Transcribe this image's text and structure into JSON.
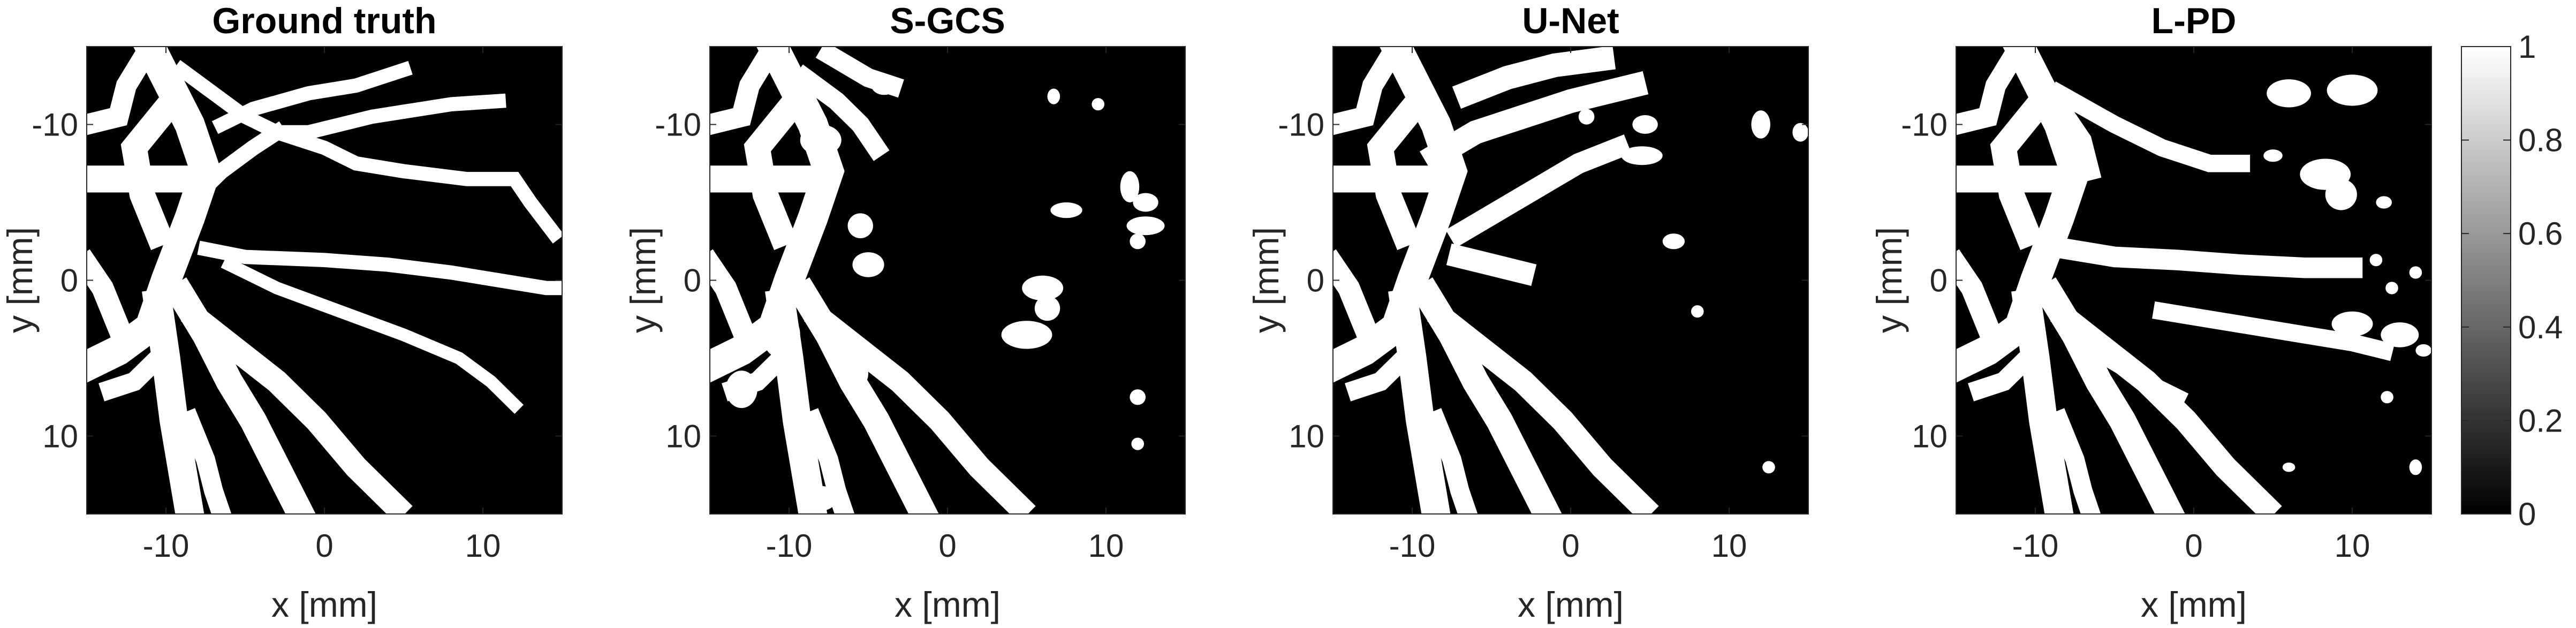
{
  "chart_data": {
    "type": "heatmap",
    "colormap": "gray",
    "colorbar": {
      "min": 0,
      "max": 1,
      "ticks": [
        0,
        0.2,
        0.4,
        0.6,
        0.8,
        1
      ]
    },
    "shared_axes": {
      "xlabel": "x [mm]",
      "ylabel": "y [mm]",
      "xlim": [
        -15,
        15
      ],
      "ylim": [
        -15,
        15
      ],
      "xticks": [
        -10,
        0,
        10
      ],
      "yticks": [
        -10,
        0,
        10
      ],
      "y_direction": "down"
    },
    "panels": [
      {
        "title": "Ground truth"
      },
      {
        "title": "S-GCS"
      },
      {
        "title": "U-Net"
      },
      {
        "title": "L-PD"
      }
    ],
    "vessels": {
      "common": [
        {
          "w": 1.9,
          "pts": [
            [
              -15,
              5.5
            ],
            [
              -13,
              4.5
            ],
            [
              -11,
              3
            ],
            [
              -10,
              0
            ],
            [
              -8.5,
              -4
            ],
            [
              -7.5,
              -7
            ],
            [
              -8.5,
              -10
            ],
            [
              -10,
              -13
            ],
            [
              -11,
              -15
            ]
          ]
        },
        {
          "w": 1.6,
          "pts": [
            [
              -10,
              -11
            ],
            [
              -12,
              -8.5
            ],
            [
              -11.5,
              -5.5
            ],
            [
              -10.5,
              -3
            ]
          ]
        },
        {
          "w": 1.3,
          "pts": [
            [
              -11,
              -15
            ],
            [
              -12.5,
              -12.5
            ],
            [
              -13,
              -10.5
            ],
            [
              -15,
              -10
            ]
          ]
        },
        {
          "w": 1.7,
          "pts": [
            [
              -15,
              -6.5
            ],
            [
              -12.5,
              -6.5
            ],
            [
              -10.5,
              -6.5
            ],
            [
              -8.5,
              -6.5
            ]
          ]
        },
        {
          "w": 1.7,
          "pts": [
            [
              -9,
              1
            ],
            [
              -7.5,
              3.5
            ],
            [
              -6,
              6.5
            ],
            [
              -4.5,
              9
            ],
            [
              -3,
              12
            ],
            [
              -1.5,
              15
            ]
          ]
        },
        {
          "w": 1.8,
          "pts": [
            [
              -10.5,
              1.5
            ],
            [
              -10,
              5
            ],
            [
              -9.5,
              9
            ],
            [
              -9,
              12
            ],
            [
              -8.5,
              15
            ]
          ]
        },
        {
          "w": 1.2,
          "pts": [
            [
              -10.5,
              5
            ],
            [
              -12,
              6.5
            ],
            [
              -13.5,
              7
            ]
          ]
        },
        {
          "w": 1.5,
          "pts": [
            [
              -8,
              2.5
            ],
            [
              -5.5,
              4.5
            ],
            [
              -3,
              6.5
            ],
            [
              -0.5,
              9
            ],
            [
              2,
              12
            ],
            [
              4.5,
              14.5
            ]
          ]
        },
        {
          "w": 1.2,
          "pts": [
            [
              -8.5,
              9
            ],
            [
              -7.5,
              11.5
            ],
            [
              -7,
              13.5
            ],
            [
              -6.5,
              15
            ]
          ]
        },
        {
          "w": 1.4,
          "pts": [
            [
              -13,
              3
            ],
            [
              -14,
              0.5
            ],
            [
              -15,
              -1
            ]
          ]
        }
      ],
      "ground_truth": [
        {
          "w": 0.9,
          "pts": [
            [
              -6.5,
              -10
            ],
            [
              -4.5,
              -11
            ],
            [
              -1,
              -12
            ],
            [
              2,
              -12.5
            ],
            [
              5,
              -13.5
            ]
          ]
        },
        {
          "w": 0.9,
          "pts": [
            [
              -9,
              -13.5
            ],
            [
              -7,
              -12
            ],
            [
              -5,
              -10.5
            ],
            [
              -3,
              -9.5
            ],
            [
              -1,
              -9.5
            ],
            [
              3,
              -10.5
            ],
            [
              8,
              -11.3
            ],
            [
              11,
              -11.5
            ]
          ]
        },
        {
          "w": 1.0,
          "pts": [
            [
              -8,
              -5.5
            ],
            [
              -6.5,
              -7
            ],
            [
              -4.5,
              -8.5
            ],
            [
              -3,
              -9.5
            ]
          ]
        },
        {
          "w": 0.9,
          "pts": [
            [
              -3,
              -9.5
            ],
            [
              0,
              -8.5
            ],
            [
              2,
              -7.5
            ],
            [
              5,
              -7
            ],
            [
              9,
              -6.5
            ],
            [
              12,
              -6.5
            ],
            [
              13,
              -5
            ],
            [
              14.5,
              -3
            ]
          ]
        },
        {
          "w": 0.9,
          "pts": [
            [
              -7.5,
              -2
            ],
            [
              -5,
              -1.5
            ],
            [
              0,
              -1.3
            ],
            [
              4,
              -1
            ],
            [
              8,
              -0.5
            ],
            [
              11,
              0
            ],
            [
              14,
              0.5
            ],
            [
              15,
              0.5
            ]
          ]
        },
        {
          "w": 0.8,
          "pts": [
            [
              -6,
              -1
            ],
            [
              -3,
              0.5
            ],
            [
              1,
              2
            ],
            [
              5,
              3.5
            ],
            [
              8.5,
              5
            ],
            [
              10.5,
              6.5
            ],
            [
              12,
              8
            ]
          ]
        }
      ],
      "s_gcs": [
        {
          "w": 1.2,
          "pts": [
            [
              -9,
              -13
            ],
            [
              -7,
              -11.5
            ],
            [
              -5.5,
              -10
            ],
            [
              -4.5,
              -8.5
            ]
          ]
        },
        {
          "w": 1.2,
          "pts": [
            [
              -7.5,
              -14.5
            ],
            [
              -5,
              -13
            ],
            [
              -3.5,
              -12.5
            ]
          ]
        }
      ],
      "u_net": [
        {
          "w": 1.5,
          "pts": [
            [
              -6.5,
              -12
            ],
            [
              -4,
              -13
            ],
            [
              -1,
              -13.8
            ],
            [
              2,
              -14.2
            ]
          ]
        },
        {
          "w": 1.5,
          "pts": [
            [
              -8.5,
              -8
            ],
            [
              -6,
              -9.5
            ],
            [
              -3,
              -10.5
            ],
            [
              0,
              -11.5
            ],
            [
              2,
              -12
            ],
            [
              4,
              -12.5
            ]
          ]
        },
        {
          "w": 1.3,
          "pts": [
            [
              -7,
              -3
            ],
            [
              -4.5,
              -4.5
            ],
            [
              -2,
              -6
            ],
            [
              0.5,
              -7.5
            ],
            [
              3,
              -8.5
            ]
          ]
        },
        {
          "w": 1.4,
          "pts": [
            [
              -7,
              -1.5
            ],
            [
              -5,
              -1
            ],
            [
              -3,
              -0.5
            ]
          ]
        }
      ],
      "l_pd": [
        {
          "w": 1.1,
          "pts": [
            [
              -8.5,
              -12
            ],
            [
              -5,
              -10
            ],
            [
              -2,
              -8.5
            ],
            [
              1,
              -7.5
            ],
            [
              3,
              -7.5
            ]
          ]
        },
        {
          "w": 1.1,
          "pts": [
            [
              -10,
              -11
            ],
            [
              -8,
              -10.5
            ],
            [
              -7,
              -9
            ],
            [
              -6.5,
              -7
            ]
          ]
        },
        {
          "w": 1.3,
          "pts": [
            [
              -8,
              -2
            ],
            [
              -5,
              -1.5
            ],
            [
              -1,
              -1.3
            ],
            [
              3,
              -1
            ],
            [
              7,
              -0.8
            ],
            [
              10,
              -0.8
            ]
          ]
        },
        {
          "w": 1.1,
          "pts": [
            [
              -2,
              2
            ],
            [
              1,
              2.5
            ],
            [
              4,
              3
            ],
            [
              7,
              3.5
            ],
            [
              10,
              4
            ],
            [
              12,
              4.5
            ]
          ]
        },
        {
          "w": 1.0,
          "pts": [
            [
              -5.5,
              5
            ],
            [
              -3,
              6.5
            ],
            [
              -1,
              7.5
            ]
          ]
        }
      ]
    },
    "blobs": {
      "s_gcs": [
        {
          "x": -8,
          "y": -9,
          "rx": 1.3,
          "ry": 1.0
        },
        {
          "x": -5.5,
          "y": -3.5,
          "rx": 0.8,
          "ry": 0.8
        },
        {
          "x": -5,
          "y": -1,
          "rx": 1.0,
          "ry": 0.8
        },
        {
          "x": -10.5,
          "y": 3.5,
          "rx": 1.2,
          "ry": 1.5
        },
        {
          "x": -6,
          "y": 6,
          "rx": 1.0,
          "ry": 1.0
        },
        {
          "x": 6,
          "y": 0.5,
          "rx": 1.3,
          "ry": 0.8
        },
        {
          "x": 5,
          "y": 3.5,
          "rx": 1.6,
          "ry": 0.9
        },
        {
          "x": 6.3,
          "y": 1.8,
          "rx": 0.8,
          "ry": 0.8
        },
        {
          "x": 7.5,
          "y": -4.5,
          "rx": 1.0,
          "ry": 0.5
        },
        {
          "x": 11.5,
          "y": -6,
          "rx": 0.6,
          "ry": 1.0
        },
        {
          "x": 12.5,
          "y": -5,
          "rx": 0.8,
          "ry": 0.6
        },
        {
          "x": 12.5,
          "y": -3.5,
          "rx": 1.2,
          "ry": 0.6
        },
        {
          "x": 12,
          "y": -2.5,
          "rx": 0.5,
          "ry": 0.5
        },
        {
          "x": 9.5,
          "y": -11.3,
          "rx": 0.4,
          "ry": 0.4
        },
        {
          "x": 6.7,
          "y": -11.8,
          "rx": 0.4,
          "ry": 0.5
        },
        {
          "x": 12,
          "y": 7.5,
          "rx": 0.5,
          "ry": 0.5
        },
        {
          "x": 12,
          "y": 10.5,
          "rx": 0.4,
          "ry": 0.4
        },
        {
          "x": -13,
          "y": 7,
          "rx": 1.0,
          "ry": 1.2
        },
        {
          "x": -8,
          "y": 14,
          "rx": 1.0,
          "ry": 0.8
        },
        {
          "x": -4,
          "y": -12.5,
          "rx": 0.8,
          "ry": 0.6
        }
      ],
      "u_net": [
        {
          "x": 4.5,
          "y": -8,
          "rx": 1.3,
          "ry": 0.6
        },
        {
          "x": 4.7,
          "y": -10,
          "rx": 0.8,
          "ry": 0.6
        },
        {
          "x": 12,
          "y": -10,
          "rx": 0.6,
          "ry": 0.9
        },
        {
          "x": 14.5,
          "y": -9.5,
          "rx": 0.5,
          "ry": 0.6
        },
        {
          "x": 6.5,
          "y": -2.5,
          "rx": 0.7,
          "ry": 0.5
        },
        {
          "x": 1,
          "y": -10.5,
          "rx": 0.5,
          "ry": 0.5
        },
        {
          "x": 8,
          "y": 2,
          "rx": 0.4,
          "ry": 0.4
        },
        {
          "x": 12.5,
          "y": 12,
          "rx": 0.4,
          "ry": 0.4
        }
      ],
      "l_pd": [
        {
          "x": 6,
          "y": -12,
          "rx": 1.4,
          "ry": 0.9
        },
        {
          "x": 10,
          "y": -12.2,
          "rx": 1.6,
          "ry": 1.0
        },
        {
          "x": 8.3,
          "y": -6.8,
          "rx": 1.6,
          "ry": 1.0
        },
        {
          "x": 9.3,
          "y": -5.5,
          "rx": 1.0,
          "ry": 1.0
        },
        {
          "x": 12,
          "y": -5,
          "rx": 0.5,
          "ry": 0.4
        },
        {
          "x": 11.5,
          "y": -1.3,
          "rx": 0.4,
          "ry": 0.4
        },
        {
          "x": 10,
          "y": 2.8,
          "rx": 1.3,
          "ry": 0.8
        },
        {
          "x": 13,
          "y": 3.5,
          "rx": 1.2,
          "ry": 0.8
        },
        {
          "x": 14.5,
          "y": 4.5,
          "rx": 0.5,
          "ry": 0.4
        },
        {
          "x": 12.5,
          "y": 0.5,
          "rx": 0.4,
          "ry": 0.4
        },
        {
          "x": 12.2,
          "y": 7.5,
          "rx": 0.4,
          "ry": 0.4
        },
        {
          "x": 14,
          "y": 12,
          "rx": 0.4,
          "ry": 0.5
        },
        {
          "x": 6,
          "y": 12,
          "rx": 0.4,
          "ry": 0.3
        },
        {
          "x": 14,
          "y": -0.5,
          "rx": 0.4,
          "ry": 0.4
        },
        {
          "x": 5,
          "y": -8,
          "rx": 0.6,
          "ry": 0.4
        }
      ]
    }
  }
}
